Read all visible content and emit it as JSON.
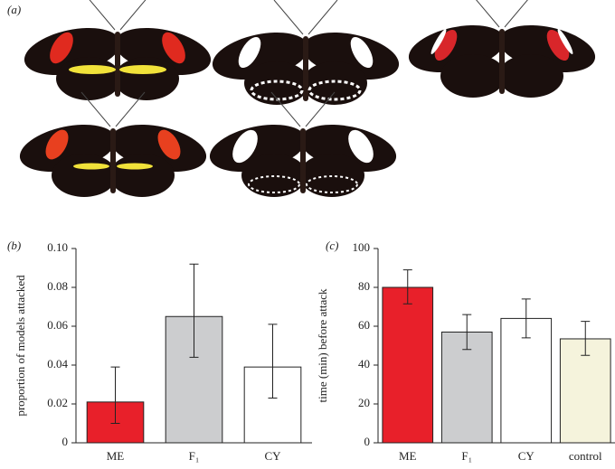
{
  "panel_a": {
    "label": "(a)"
  },
  "chart_data": [
    {
      "type": "bar",
      "panel_label": "(b)",
      "ylabel": "proportion of models attacked",
      "categories": [
        "ME",
        "F₁",
        "CY"
      ],
      "values": [
        0.021,
        0.065,
        0.039
      ],
      "ci_low": [
        0.01,
        0.044,
        0.023
      ],
      "ci_high": [
        0.039,
        0.092,
        0.061
      ],
      "colors": [
        "#e8202a",
        "#cccdcf",
        "#ffffff"
      ],
      "ylim": [
        0,
        0.1
      ],
      "yticks": [
        0,
        0.02,
        0.04,
        0.06,
        0.08,
        {
          "value": 0.1,
          "label": "0.10"
        }
      ]
    },
    {
      "type": "bar",
      "panel_label": "(c)",
      "ylabel": "time (min) before attack",
      "categories": [
        "ME",
        "F₁",
        "CY",
        "control"
      ],
      "values": [
        80,
        57,
        64,
        53.5
      ],
      "ci_low": [
        71.5,
        48,
        54,
        45
      ],
      "ci_high": [
        89,
        66,
        74,
        62.5
      ],
      "colors": [
        "#e8202a",
        "#cccdcf",
        "#ffffff",
        "#f5f3dc"
      ],
      "ylim": [
        0,
        100
      ],
      "yticks": [
        0,
        20,
        40,
        60,
        80,
        100
      ]
    }
  ]
}
